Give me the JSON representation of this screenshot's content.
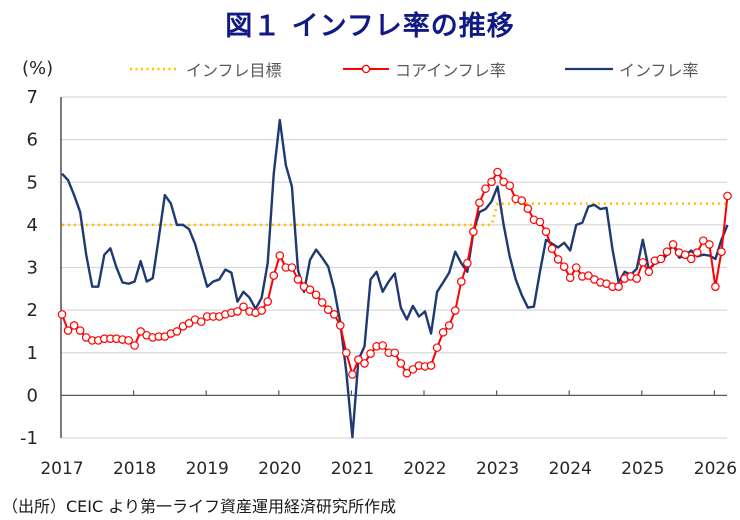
{
  "chart_data": {
    "type": "line",
    "title": "図１ インフレ率の推移",
    "ylabel": "(%)",
    "xlabel": "",
    "ylim": [
      -1,
      7
    ],
    "yticks": [
      "7",
      "6",
      "5",
      "4",
      "3",
      "2",
      "1",
      "0",
      "-1"
    ],
    "ytick_values": [
      7,
      6,
      5,
      4,
      3,
      2,
      1,
      0,
      -1
    ],
    "negative_tick_color": "#ff0000",
    "xticks": [
      "2017",
      "2018",
      "2019",
      "2020",
      "2021",
      "2022",
      "2023",
      "2024",
      "2025",
      "2026"
    ],
    "x_start": "2017-01",
    "x_frequency": "monthly",
    "grid": true,
    "legend_position": "top",
    "legend": [
      "インフレ目標",
      "コアインフレ率",
      "インフレ率"
    ],
    "series": [
      {
        "name": "インフレ目標",
        "style": "dotted",
        "color": "#ffc000",
        "values": [
          4,
          4,
          4,
          4,
          4,
          4,
          4,
          4,
          4,
          4,
          4,
          4,
          4,
          4,
          4,
          4,
          4,
          4,
          4,
          4,
          4,
          4,
          4,
          4,
          4,
          4,
          4,
          4,
          4,
          4,
          4,
          4,
          4,
          4,
          4,
          4,
          4,
          4,
          4,
          4,
          4,
          4,
          4,
          4,
          4,
          4,
          4,
          4,
          4,
          4,
          4,
          4,
          4,
          4,
          4,
          4,
          4,
          4,
          4,
          4,
          4,
          4,
          4,
          4,
          4,
          4,
          4,
          4,
          4,
          4,
          4,
          4,
          4.5,
          4.5,
          4.5,
          4.5,
          4.5,
          4.5,
          4.5,
          4.5,
          4.5,
          4.5,
          4.5,
          4.5,
          4.5,
          4.5,
          4.5,
          4.5,
          4.5,
          4.5,
          4.5,
          4.5,
          4.5,
          4.5,
          4.5,
          4.5,
          4.5,
          4.5,
          4.5,
          4.5,
          4.5,
          4.5,
          4.5,
          4.5,
          4.5,
          4.5,
          4.5,
          4.5,
          4.5,
          4.5,
          4.5
        ]
      },
      {
        "name": "コアインフレ率",
        "style": "line-with-open-circles",
        "color": "#ff0000",
        "values": [
          1.9,
          1.52,
          1.64,
          1.52,
          1.36,
          1.29,
          1.29,
          1.33,
          1.33,
          1.33,
          1.31,
          1.29,
          1.17,
          1.5,
          1.41,
          1.36,
          1.38,
          1.38,
          1.45,
          1.5,
          1.62,
          1.69,
          1.78,
          1.73,
          1.85,
          1.85,
          1.85,
          1.9,
          1.94,
          1.97,
          2.08,
          1.97,
          1.94,
          1.99,
          2.2,
          2.81,
          3.28,
          3.0,
          3.0,
          2.72,
          2.55,
          2.48,
          2.36,
          2.18,
          2.01,
          1.9,
          1.64,
          1.0,
          0.49,
          0.84,
          0.75,
          0.98,
          1.15,
          1.17,
          1.0,
          1.0,
          0.75,
          0.52,
          0.61,
          0.7,
          0.68,
          0.7,
          1.12,
          1.48,
          1.64,
          1.99,
          2.67,
          3.1,
          3.84,
          4.52,
          4.85,
          5.01,
          5.24,
          5.01,
          4.92,
          4.61,
          4.57,
          4.38,
          4.12,
          4.07,
          3.84,
          3.44,
          3.19,
          3.02,
          2.76,
          3.0,
          2.79,
          2.81,
          2.72,
          2.65,
          2.62,
          2.55,
          2.55,
          2.74,
          2.79,
          2.74,
          3.12,
          2.9,
          3.16,
          3.2,
          3.37,
          3.54,
          3.35,
          3.3,
          3.2,
          3.35,
          3.63,
          3.54,
          2.55,
          3.37,
          4.68
        ]
      },
      {
        "name": "インフレ率",
        "style": "line",
        "color": "#1f3a73",
        "values": [
          5.2,
          5.05,
          4.7,
          4.3,
          3.3,
          2.55,
          2.55,
          3.3,
          3.45,
          3.0,
          2.65,
          2.62,
          2.67,
          3.15,
          2.67,
          2.75,
          3.7,
          4.7,
          4.5,
          4.0,
          4.0,
          3.9,
          3.55,
          3.05,
          2.55,
          2.67,
          2.72,
          2.95,
          2.88,
          2.2,
          2.43,
          2.29,
          2.03,
          2.29,
          3.1,
          5.2,
          6.46,
          5.4,
          4.9,
          2.95,
          2.43,
          3.18,
          3.42,
          3.23,
          3.02,
          2.48,
          1.71,
          0.54,
          -0.98,
          0.84,
          1.15,
          2.72,
          2.9,
          2.43,
          2.67,
          2.86,
          2.06,
          1.78,
          2.1,
          1.85,
          1.97,
          1.45,
          2.43,
          2.65,
          2.88,
          3.37,
          3.1,
          2.9,
          3.84,
          4.3,
          4.37,
          4.55,
          4.9,
          4.0,
          3.26,
          2.72,
          2.35,
          2.06,
          2.08,
          2.9,
          3.65,
          3.56,
          3.47,
          3.58,
          3.4,
          4.0,
          4.05,
          4.43,
          4.47,
          4.37,
          4.4,
          3.42,
          2.65,
          2.9,
          2.83,
          2.97,
          3.65,
          2.95,
          3.1,
          3.14,
          3.3,
          3.56,
          3.23,
          3.28,
          3.4,
          3.26,
          3.3,
          3.28,
          3.2,
          3.65,
          4.0
        ]
      }
    ],
    "source_note": "（出所）CEIC より第一ライフ資産運用経済研究所作成"
  }
}
